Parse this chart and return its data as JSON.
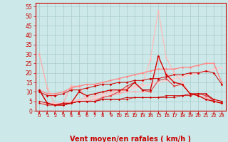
{
  "background_color": "#cce8e8",
  "grid_color": "#aacccc",
  "xlabel": "Vent moyen/en rafales ( km/h )",
  "xlabel_color": "#cc0000",
  "xlabel_fontsize": 7,
  "tick_color": "#cc0000",
  "yticks": [
    0,
    5,
    10,
    15,
    20,
    25,
    30,
    35,
    40,
    45,
    50,
    55
  ],
  "xticks": [
    0,
    1,
    2,
    3,
    4,
    5,
    6,
    7,
    8,
    9,
    10,
    11,
    12,
    13,
    14,
    15,
    16,
    17,
    18,
    19,
    20,
    21,
    22,
    23
  ],
  "ylim": [
    0,
    57
  ],
  "xlim": [
    -0.5,
    23.5
  ],
  "series": [
    {
      "x": [
        0,
        1,
        2,
        3,
        4,
        5,
        6,
        7,
        8,
        9,
        10,
        11,
        12,
        13,
        14,
        15,
        16,
        17,
        18,
        19,
        20,
        21,
        22,
        23
      ],
      "y": [
        30,
        12,
        3,
        4,
        13,
        13,
        5,
        6,
        7,
        8,
        9,
        10,
        10,
        10,
        10,
        28,
        20,
        15,
        14,
        9,
        8,
        7,
        5,
        4
      ],
      "color": "#ffaaaa",
      "marker": "D",
      "markersize": 1.8,
      "linewidth": 0.9,
      "alpha": 1.0
    },
    {
      "x": [
        0,
        1,
        2,
        3,
        4,
        5,
        6,
        7,
        8,
        9,
        10,
        11,
        12,
        13,
        14,
        15,
        16,
        17,
        18,
        19,
        20,
        21,
        22,
        23
      ],
      "y": [
        11,
        4,
        3,
        4,
        5,
        6,
        7,
        8,
        9,
        10,
        11,
        12,
        13,
        14,
        27,
        53,
        28,
        20,
        15,
        9,
        8,
        6,
        5,
        4
      ],
      "color": "#ffbbbb",
      "marker": "D",
      "markersize": 1.8,
      "linewidth": 0.9,
      "alpha": 1.0
    },
    {
      "x": [
        0,
        1,
        2,
        3,
        4,
        5,
        6,
        7,
        8,
        9,
        10,
        11,
        12,
        13,
        14,
        15,
        16,
        17,
        18,
        19,
        20,
        21,
        22,
        23
      ],
      "y": [
        4,
        4,
        4,
        4,
        5,
        5,
        6,
        7,
        8,
        9,
        10,
        11,
        12,
        13,
        14,
        15,
        16,
        17,
        18,
        19,
        20,
        21,
        22,
        23
      ],
      "color": "#ffcccc",
      "marker": "D",
      "markersize": 1.8,
      "linewidth": 1.1,
      "alpha": 1.0
    },
    {
      "x": [
        0,
        1,
        2,
        3,
        4,
        5,
        6,
        7,
        8,
        9,
        10,
        11,
        12,
        13,
        14,
        15,
        16,
        17,
        18,
        19,
        20,
        21,
        22,
        23
      ],
      "y": [
        11,
        9,
        9,
        10,
        12,
        13,
        14,
        14,
        15,
        16,
        17,
        18,
        19,
        20,
        21,
        22,
        22,
        22,
        23,
        23,
        24,
        25,
        25,
        15
      ],
      "color": "#ff8888",
      "marker": "D",
      "markersize": 1.8,
      "linewidth": 1.0,
      "alpha": 1.0
    },
    {
      "x": [
        0,
        1,
        2,
        3,
        4,
        5,
        6,
        7,
        8,
        9,
        10,
        11,
        12,
        13,
        14,
        15,
        16,
        17,
        18,
        19,
        20,
        21,
        22,
        23
      ],
      "y": [
        11,
        4,
        3,
        3,
        4,
        5,
        5,
        5,
        7,
        8,
        10,
        13,
        15,
        11,
        10,
        16,
        17,
        13,
        14,
        9,
        9,
        8,
        6,
        5
      ],
      "color": "#dd4444",
      "marker": "D",
      "markersize": 1.8,
      "linewidth": 0.8,
      "alpha": 1.0
    },
    {
      "x": [
        0,
        1,
        2,
        3,
        4,
        5,
        6,
        7,
        8,
        9,
        10,
        11,
        12,
        13,
        14,
        15,
        16,
        17,
        18,
        19,
        20,
        21,
        22,
        23
      ],
      "y": [
        11,
        4,
        3,
        4,
        4,
        10,
        8,
        9,
        10,
        11,
        11,
        11,
        15,
        11,
        11,
        29,
        19,
        15,
        14,
        9,
        8,
        6,
        5,
        4
      ],
      "color": "#cc0000",
      "marker": "D",
      "markersize": 1.8,
      "linewidth": 0.9,
      "alpha": 1.0
    },
    {
      "x": [
        0,
        1,
        2,
        3,
        4,
        5,
        6,
        7,
        8,
        9,
        10,
        11,
        12,
        13,
        14,
        15,
        16,
        17,
        18,
        19,
        20,
        21,
        22,
        23
      ],
      "y": [
        10,
        8,
        8,
        9,
        11,
        11,
        12,
        13,
        14,
        14,
        15,
        15,
        16,
        16,
        17,
        17,
        18,
        19,
        19,
        20,
        20,
        21,
        20,
        14
      ],
      "color": "#cc0000",
      "marker": "D",
      "markersize": 1.8,
      "linewidth": 0.7,
      "alpha": 1.0
    },
    {
      "x": [
        0,
        1,
        2,
        3,
        4,
        5,
        6,
        7,
        8,
        9,
        10,
        11,
        12,
        13,
        14,
        15,
        16,
        17,
        18,
        19,
        20,
        21,
        22,
        23
      ],
      "y": [
        4,
        3,
        3,
        3,
        4,
        5,
        5,
        5,
        6,
        6,
        6,
        7,
        7,
        7,
        7,
        7,
        7,
        7,
        8,
        8,
        9,
        9,
        6,
        5
      ],
      "color": "#cc0000",
      "marker": "D",
      "markersize": 1.5,
      "linewidth": 0.6,
      "alpha": 1.0
    },
    {
      "x": [
        0,
        1,
        2,
        3,
        4,
        5,
        6,
        7,
        8,
        9,
        10,
        11,
        12,
        13,
        14,
        15,
        16,
        17,
        18,
        19,
        20,
        21,
        22,
        23
      ],
      "y": [
        5,
        4,
        3,
        3,
        4,
        5,
        5,
        5,
        6,
        6,
        6,
        6,
        7,
        7,
        7,
        7,
        8,
        8,
        8,
        9,
        9,
        9,
        5,
        4
      ],
      "color": "#cc0000",
      "marker": "D",
      "markersize": 1.5,
      "linewidth": 0.6,
      "alpha": 1.0
    }
  ],
  "arrow_angles": [
    195,
    205,
    210,
    200,
    195,
    200,
    210,
    220,
    215,
    220,
    225,
    230,
    235,
    235,
    240,
    160,
    170,
    175,
    175,
    190,
    155,
    158,
    175,
    160
  ]
}
